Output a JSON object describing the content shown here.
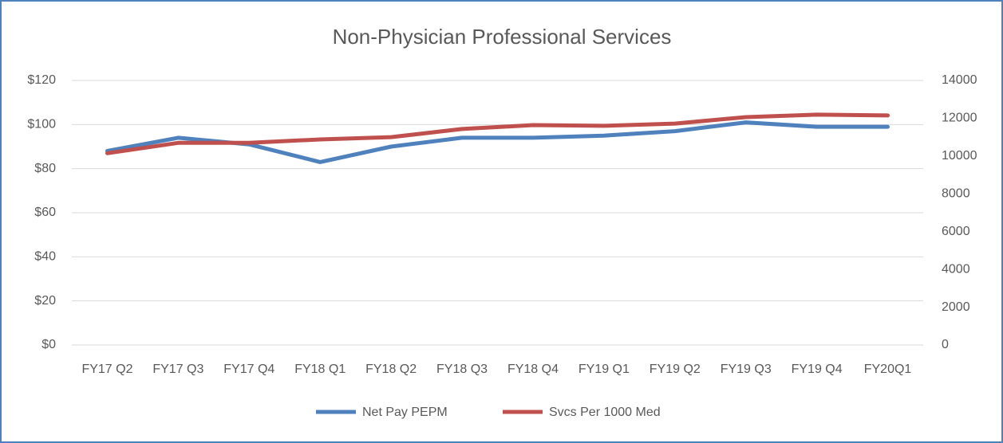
{
  "chart_data": {
    "type": "line",
    "title": "Non-Physician Professional Services",
    "categories": [
      "FY17 Q2",
      "FY17 Q3",
      "FY17 Q4",
      "FY18 Q1",
      "FY18 Q2",
      "FY18 Q3",
      "FY18 Q4",
      "FY19 Q1",
      "FY19 Q2",
      "FY19 Q3",
      "FY19 Q4",
      "FY20Q1"
    ],
    "series": [
      {
        "name": "Net Pay PEPM",
        "color": "#4f81bd",
        "values": [
          88,
          94,
          91,
          83,
          90,
          94,
          94,
          95,
          97,
          101,
          99,
          99
        ]
      },
      {
        "name": "Svcs Per 1000 Med",
        "color": "#c0504d",
        "axis": "y2",
        "values": [
          10150,
          10700,
          10700,
          10880,
          11000,
          11430,
          11640,
          11600,
          11720,
          12060,
          12190,
          12150
        ]
      }
    ],
    "ylim": [
      0,
      120
    ],
    "yticks": [
      {
        "value": 0,
        "label": "$0"
      },
      {
        "value": 20,
        "label": "$20"
      },
      {
        "value": 40,
        "label": "$40"
      },
      {
        "value": 60,
        "label": "$60"
      },
      {
        "value": 80,
        "label": "$80"
      },
      {
        "value": 100,
        "label": "$100"
      },
      {
        "value": 120,
        "label": "$120"
      }
    ],
    "y2lim": [
      0,
      14000
    ],
    "y2ticks": [
      0,
      2000,
      4000,
      6000,
      8000,
      10000,
      12000,
      14000
    ],
    "grid": true,
    "legend": "bottom"
  }
}
